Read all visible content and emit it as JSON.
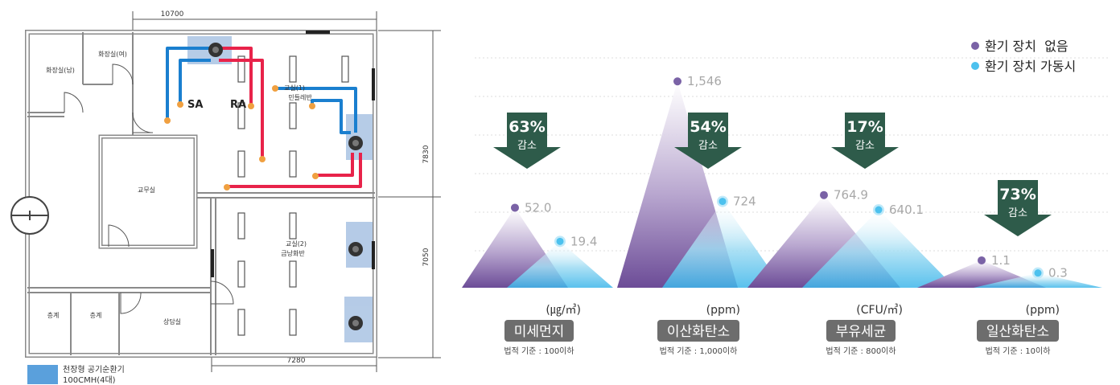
{
  "floorplan": {
    "dim_top": "10700",
    "dim_bottom": "7280",
    "dim_right_upper": "7830",
    "dim_right_lower": "7050",
    "rooms": {
      "restroom_male": "화장실(남)",
      "restroom_female": "화장실(여)",
      "classroom1_title": "교실(1)",
      "classroom1_sub": "민들레반",
      "staff_room": "교무실",
      "classroom2_title": "교실(2)",
      "classroom2_sub": "금낭화반",
      "stairs_1": "층계",
      "stairs_2": "층계",
      "counseling": "상담실"
    },
    "duct_labels": {
      "supply": "SA",
      "return": "RA"
    },
    "legend_line1": "천장형 공기순환기",
    "legend_line2": "100CMH(4대)",
    "colors": {
      "supply_duct": "#1a7fcf",
      "return_duct": "#e8234a",
      "unit_zone": "#a9c3e3",
      "legend_swatch": "#5aa0dc",
      "wall": "#7a7a7a"
    }
  },
  "chart_data": {
    "type": "mountain",
    "legend": [
      {
        "name": "환기 장치  없음",
        "color": "#7a62a6"
      },
      {
        "name": "환기 장치 가동시",
        "color": "#4cc1ee"
      }
    ],
    "series": [
      {
        "name": "환기 장치  없음",
        "color": "#7a62a6",
        "value_labels": [
          "52.0",
          "1,546",
          "764.9",
          "1.1"
        ]
      },
      {
        "name": "환기 장치 가동시",
        "color": "#4cc1ee",
        "value_labels": [
          "19.4",
          "724",
          "640.1",
          "0.3"
        ]
      }
    ],
    "groups": [
      {
        "name": "미세먼지",
        "unit": "(㎍/㎥)",
        "standard": "법적 기준 : 100이하",
        "without": 52.0,
        "with": 19.4,
        "reduction": "63%",
        "reduction_label": "감소",
        "peak_a": 0.38,
        "peak_b": 0.22
      },
      {
        "name": "이산화탄소",
        "unit": "(ppm)",
        "standard": "법적 기준 : 1,000이하",
        "without": 1546,
        "with": 724,
        "reduction": "54%",
        "reduction_label": "감소",
        "peak_a": 0.98,
        "peak_b": 0.41
      },
      {
        "name": "부유세균",
        "unit": "(CFU/㎥)",
        "standard": "법적 기준 : 800이하",
        "without": 764.9,
        "with": 640.1,
        "reduction": "17%",
        "reduction_label": "감소",
        "peak_a": 0.44,
        "peak_b": 0.37
      },
      {
        "name": "일산화탄소",
        "unit": "(ppm)",
        "standard": "법적 기준 : 10이하",
        "without": 1.1,
        "with": 0.3,
        "reduction": "73%",
        "reduction_label": "감소",
        "peak_a": 0.13,
        "peak_b": 0.07
      }
    ],
    "grid": true,
    "legend_position": "top-right",
    "colors": {
      "arrow": "#2e5b4a",
      "label_box": "#6d6d6d",
      "value_text": "#a8a8a8"
    }
  }
}
